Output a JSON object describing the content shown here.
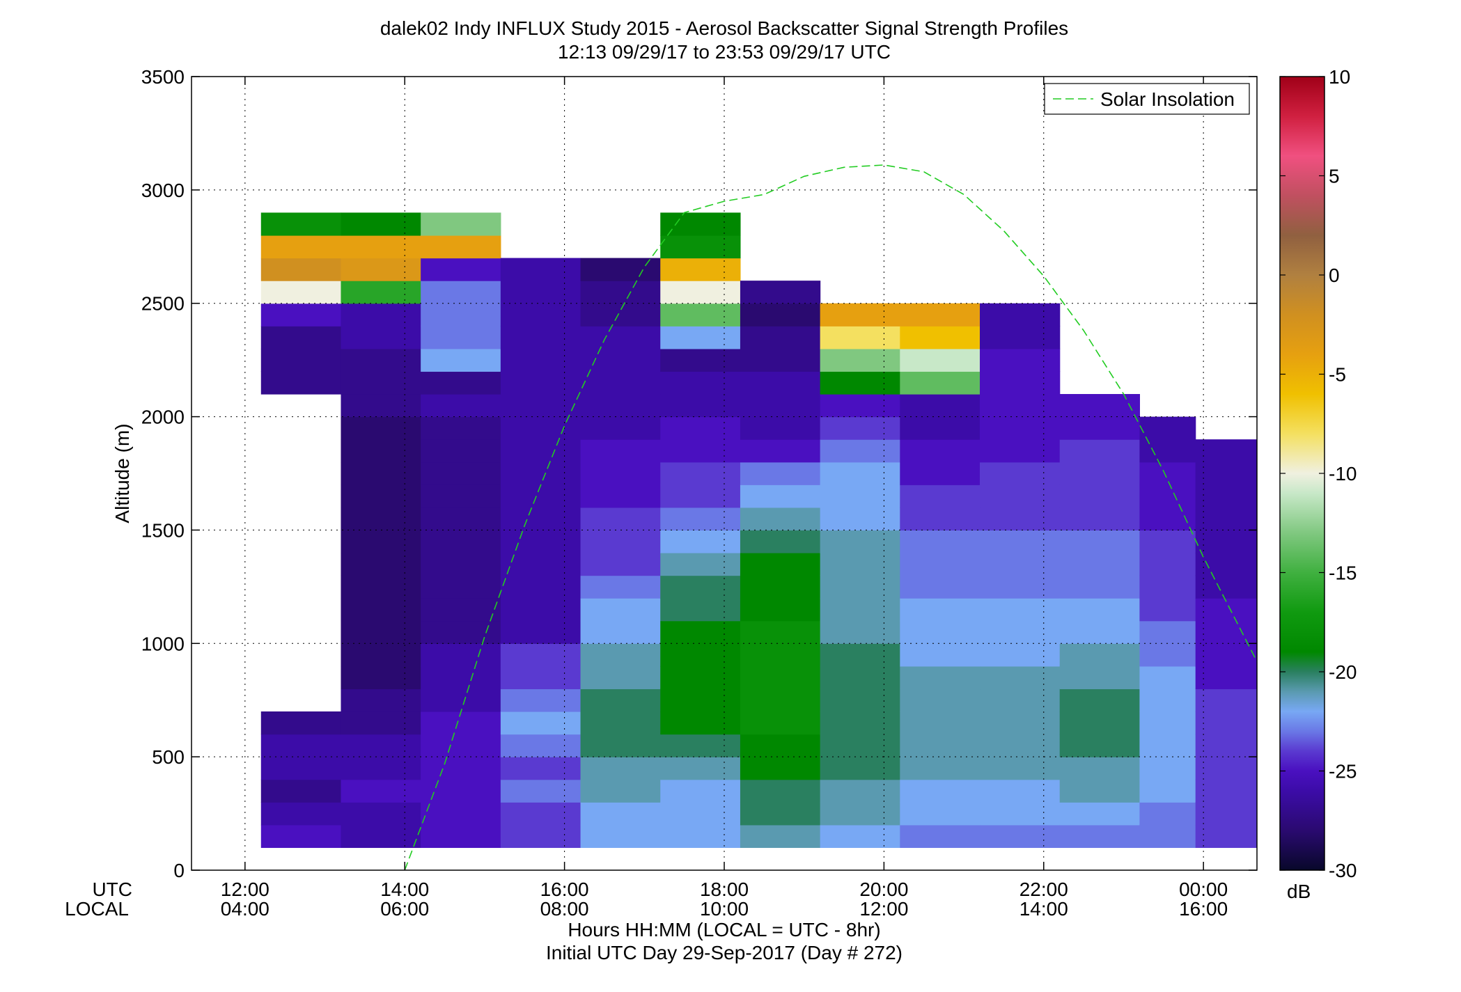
{
  "chart_data": {
    "type": "heatmap",
    "title": "dalek02 Indy INFLUX Study 2015 - Aerosol Backscatter Signal Strength Profiles",
    "subtitle": "12:13 09/29/17 to 23:53 09/29/17  UTC",
    "ylabel": "Altitude (m)",
    "xlabel_line1": "Hours HH:MM  (LOCAL = UTC - 8hr)",
    "xlabel_line2": "Initial UTC Day 29-Sep-2017 (Day # 272)",
    "x_row_label_utc": "UTC",
    "x_row_label_local": "LOCAL",
    "x_ticks_utc_hours": [
      12,
      14,
      16,
      18,
      20,
      22,
      24
    ],
    "x_tick_labels_utc": [
      "12:00",
      "14:00",
      "16:00",
      "18:00",
      "20:00",
      "22:00",
      "00:00"
    ],
    "x_tick_labels_local": [
      "04:00",
      "06:00",
      "08:00",
      "10:00",
      "12:00",
      "14:00",
      "16:00"
    ],
    "xlim_utc_hours": [
      11.33,
      24.67
    ],
    "ylim": [
      0,
      3500
    ],
    "y_ticks": [
      0,
      500,
      1000,
      1500,
      2000,
      2500,
      3000,
      3500
    ],
    "grid": true,
    "legend": {
      "entries": [
        "Solar Insolation"
      ],
      "placement": "top-right"
    },
    "colorbar": {
      "label": "dB",
      "range": [
        -30,
        10
      ],
      "ticks": [
        -30,
        -25,
        -20,
        -15,
        -10,
        -5,
        0,
        5,
        10
      ],
      "stops": [
        [
          -30,
          "#08082a"
        ],
        [
          -28,
          "#2a0a70"
        ],
        [
          -26,
          "#3c0ca8"
        ],
        [
          -25,
          "#4a10c0"
        ],
        [
          -24,
          "#5a3ad0"
        ],
        [
          -23,
          "#6a78e6"
        ],
        [
          -22,
          "#78a8f4"
        ],
        [
          -21,
          "#5a9ab0"
        ],
        [
          -20,
          "#2a8060"
        ],
        [
          -19,
          "#008800"
        ],
        [
          -17,
          "#109a10"
        ],
        [
          -15,
          "#40b040"
        ],
        [
          -13,
          "#80c880"
        ],
        [
          -11,
          "#c8e8c8"
        ],
        [
          -10,
          "#f0f0e0"
        ],
        [
          -8,
          "#f4e060"
        ],
        [
          -6,
          "#f0c000"
        ],
        [
          -4,
          "#e6a010"
        ],
        [
          -2,
          "#d09020"
        ],
        [
          0,
          "#b08040"
        ],
        [
          2,
          "#906040"
        ],
        [
          4,
          "#c05060"
        ],
        [
          6,
          "#f05080"
        ],
        [
          8,
          "#d02040"
        ],
        [
          10,
          "#a00018"
        ]
      ]
    },
    "grid_spec": {
      "t0_utc_hours": 12.2,
      "dt_hours": 1.0,
      "z0_m": 100,
      "dz_m": 100
    },
    "series": [
      {
        "name": "Solar Insolation",
        "type": "line",
        "style": "dashed",
        "color": "#22cc22",
        "x_utc_hours": [
          14,
          14.5,
          15,
          15.5,
          16,
          16.5,
          17,
          17.5,
          18,
          18.5,
          19,
          19.5,
          20,
          20.5,
          21,
          21.5,
          22,
          22.5,
          23,
          23.5,
          24,
          24.67
        ],
        "y_altitude_m": [
          0,
          470,
          1030,
          1520,
          1960,
          2340,
          2660,
          2900,
          2950,
          2980,
          3060,
          3100,
          3110,
          3080,
          2980,
          2820,
          2620,
          2380,
          2100,
          1760,
          1380,
          920
        ]
      }
    ],
    "columns": [
      {
        "t_utc_hours": 12.2,
        "profile_db": [
          -25,
          -26,
          -27,
          -26,
          -26,
          -27,
          null,
          null,
          null,
          null,
          null,
          null,
          null,
          null,
          null,
          null,
          null,
          null,
          null,
          null,
          -27,
          -27,
          -27,
          -25,
          -10,
          -2,
          -4,
          -18
        ]
      },
      {
        "t_utc_hours": 13.2,
        "profile_db": [
          -26,
          -26,
          -25,
          -26,
          -26,
          -27,
          -27,
          -28,
          -28,
          -28,
          -28,
          -28,
          -28,
          -28,
          -28,
          -28,
          -28,
          -28,
          -28,
          -27,
          -27,
          -27,
          -26,
          -26,
          -16,
          -3,
          -4,
          -19
        ]
      },
      {
        "t_utc_hours": 14.2,
        "profile_db": [
          -25,
          -25,
          -25,
          -25,
          -25,
          -25,
          -26,
          -26,
          -26,
          -27,
          -27,
          -27,
          -27,
          -27,
          -27,
          -27,
          -27,
          -27,
          -27,
          -26,
          -27,
          -22,
          -23,
          -23,
          -23,
          -25,
          -4,
          -13
        ]
      },
      {
        "t_utc_hours": 15.2,
        "profile_db": [
          -24,
          -24,
          -23,
          -24,
          -23,
          -22,
          -23,
          -24,
          -24,
          -26,
          -26,
          -26,
          -26,
          -26,
          -26,
          -26,
          -26,
          -26,
          -26,
          -26,
          -26,
          -26,
          -26,
          -26,
          -26,
          -26,
          null,
          null
        ]
      },
      {
        "t_utc_hours": 16.2,
        "profile_db": [
          -22,
          -22,
          -21,
          -21,
          -20,
          -20,
          -20,
          -21,
          -21,
          -22,
          -22,
          -23,
          -24,
          -24,
          -24,
          -25,
          -25,
          -25,
          -26,
          -26,
          -26,
          -26,
          -26,
          -27,
          -27,
          -28,
          null,
          null
        ]
      },
      {
        "t_utc_hours": 17.2,
        "profile_db": [
          -22,
          -22,
          -22,
          -21,
          -20,
          -19,
          -19,
          -19,
          -19,
          -19,
          -20,
          -20,
          -21,
          -22,
          -23,
          -24,
          -24,
          -25,
          -25,
          -26,
          -26,
          -27,
          -22,
          -14,
          -10,
          -5,
          -18,
          -19
        ]
      },
      {
        "t_utc_hours": 18.2,
        "profile_db": [
          -21,
          -20,
          -20,
          -19,
          -19,
          -18,
          -18,
          -18,
          -18,
          -18,
          -19,
          -19,
          -19,
          -20,
          -21,
          -22,
          -23,
          -25,
          -26,
          -26,
          -26,
          -27,
          -27,
          -28,
          -27,
          null,
          null,
          null
        ]
      },
      {
        "t_utc_hours": 19.2,
        "profile_db": [
          -22,
          -21,
          -21,
          -20,
          -20,
          -20,
          -20,
          -20,
          -20,
          -21,
          -21,
          -21,
          -21,
          -21,
          -22,
          -22,
          -22,
          -23,
          -24,
          -25,
          -19,
          -13,
          -8,
          -4,
          null,
          null,
          null,
          null
        ]
      },
      {
        "t_utc_hours": 20.2,
        "profile_db": [
          -23,
          -22,
          -22,
          -21,
          -21,
          -21,
          -21,
          -21,
          -22,
          -22,
          -22,
          -23,
          -23,
          -23,
          -24,
          -24,
          -25,
          -25,
          -26,
          -26,
          -14,
          -11,
          -6,
          -4,
          null,
          null,
          null,
          null
        ]
      },
      {
        "t_utc_hours": 21.2,
        "profile_db": [
          -23,
          -22,
          -22,
          -21,
          -21,
          -21,
          -21,
          -21,
          -22,
          -22,
          -22,
          -23,
          -23,
          -23,
          -24,
          -24,
          -24,
          -25,
          -25,
          -25,
          -25,
          -25,
          -26,
          -26,
          null,
          null,
          null,
          null
        ]
      },
      {
        "t_utc_hours": 22.2,
        "profile_db": [
          -23,
          -22,
          -21,
          -21,
          -20,
          -20,
          -20,
          -21,
          -21,
          -22,
          -22,
          -23,
          -23,
          -23,
          -24,
          -24,
          -24,
          -24,
          -25,
          -25,
          null,
          null,
          null,
          null,
          null,
          null,
          null,
          null
        ]
      },
      {
        "t_utc_hours": 23.2,
        "profile_db": [
          -23,
          -23,
          -22,
          -22,
          -22,
          -22,
          -22,
          -22,
          -23,
          -23,
          -24,
          -24,
          -24,
          -24,
          -25,
          -25,
          -25,
          -26,
          -26,
          null,
          null,
          null,
          null,
          null,
          null,
          null,
          null,
          null
        ]
      },
      {
        "t_utc_hours": 23.9,
        "profile_db": [
          -24,
          -24,
          -24,
          -24,
          -24,
          -24,
          -24,
          -25,
          -25,
          -25,
          -25,
          -26,
          -26,
          -26,
          -26,
          -26,
          -26,
          -26,
          null,
          null,
          null,
          null,
          null,
          null,
          null,
          null,
          null,
          null
        ]
      }
    ]
  }
}
